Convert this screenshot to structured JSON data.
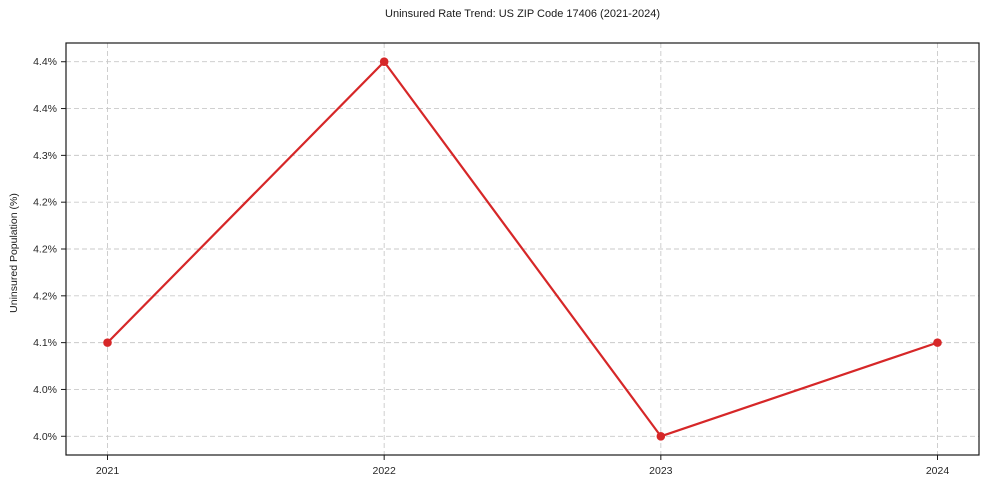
{
  "chart_data": {
    "type": "line",
    "title": "Uninsured Rate Trend: US ZIP Code 17406 (2021-2024)",
    "xlabel": "",
    "ylabel": "Uninsured Population (%)",
    "x": [
      2021,
      2022,
      2023,
      2024
    ],
    "x_tick_labels": [
      "2021",
      "2022",
      "2023",
      "2024"
    ],
    "series": [
      {
        "name": "Uninsured Rate",
        "values": [
          4.1,
          4.4,
          4.0,
          4.1
        ]
      }
    ],
    "y_ticks": [
      4.4,
      4.35,
      4.3,
      4.25,
      4.2,
      4.15,
      4.1,
      4.05,
      4.0
    ],
    "y_tick_labels": [
      "4.4%",
      "4.4%",
      "4.3%",
      "4.2%",
      "4.2%",
      "4.2%",
      "4.1%",
      "4.0%",
      "4.0%"
    ],
    "xlim": [
      2020.85,
      2024.15
    ],
    "ylim": [
      3.98,
      4.42
    ],
    "grid": true,
    "legend": "none",
    "colors": {
      "line": "#d62728",
      "marker": "#d62728",
      "gridline": "#c9c9c9",
      "spine": "#1a1a1a",
      "background": "#ffffff"
    }
  }
}
